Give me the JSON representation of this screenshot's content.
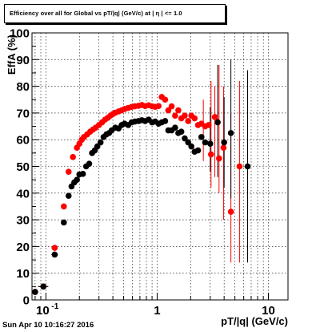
{
  "chart_data": {
    "type": "scatter",
    "title": "Efficiency over all for Global vs pT/|q| (GeV/c) at | η | <= 1.0",
    "xlabel": "pT/|q| (GeV/c)",
    "ylabel": "EffA (%)",
    "xscale": "log",
    "xlim": [
      0.075,
      15
    ],
    "ylim": [
      0,
      100
    ],
    "grid": true,
    "x_ticks": [
      {
        "v": 0.1,
        "base": "10",
        "exp": "-1"
      },
      {
        "v": 1,
        "label": "1"
      },
      {
        "v": 10,
        "label": "10"
      }
    ],
    "y_ticks": [
      "0",
      "10",
      "20",
      "30",
      "40",
      "50",
      "60",
      "70",
      "80",
      "90",
      "100"
    ],
    "series": [
      {
        "color": "#ff0000",
        "points": [
          [
            0.08,
            3,
            0.004,
            0
          ],
          [
            0.095,
            5,
            0.01,
            0
          ],
          [
            0.12,
            19.5,
            0.008,
            0
          ],
          [
            0.145,
            35,
            0,
            0
          ],
          [
            0.16,
            48,
            0,
            0
          ],
          [
            0.175,
            53.5,
            0,
            0
          ],
          [
            0.19,
            57,
            0,
            0
          ],
          [
            0.2,
            58.5,
            0,
            0
          ],
          [
            0.21,
            60,
            0,
            0
          ],
          [
            0.22,
            61,
            0,
            0
          ],
          [
            0.235,
            62,
            0,
            0
          ],
          [
            0.25,
            63,
            0,
            0
          ],
          [
            0.265,
            63.8,
            0,
            0
          ],
          [
            0.28,
            64.5,
            0,
            0
          ],
          [
            0.3,
            65.5,
            0,
            0
          ],
          [
            0.32,
            66.5,
            0,
            0
          ],
          [
            0.34,
            67.5,
            0,
            0
          ],
          [
            0.36,
            68.2,
            0,
            0
          ],
          [
            0.38,
            69,
            0,
            0
          ],
          [
            0.4,
            69.6,
            0,
            0
          ],
          [
            0.42,
            70.1,
            0,
            0
          ],
          [
            0.45,
            70.6,
            0,
            0
          ],
          [
            0.48,
            71,
            0,
            0
          ],
          [
            0.51,
            71.5,
            0,
            0
          ],
          [
            0.55,
            71.9,
            0,
            0
          ],
          [
            0.59,
            72.3,
            0,
            0
          ],
          [
            0.63,
            72.5,
            0,
            0
          ],
          [
            0.68,
            72.7,
            0,
            0
          ],
          [
            0.73,
            73,
            0,
            0
          ],
          [
            0.78,
            72.6,
            0,
            0
          ],
          [
            0.84,
            72.9,
            0,
            0
          ],
          [
            0.9,
            72.5,
            0,
            0
          ],
          [
            0.96,
            72.3,
            0,
            0
          ],
          [
            1.03,
            72.6,
            0,
            0
          ],
          [
            1.1,
            76,
            0,
            0
          ],
          [
            1.18,
            75,
            0,
            0
          ],
          [
            1.26,
            71,
            0,
            0
          ],
          [
            1.35,
            72.5,
            0,
            0
          ],
          [
            1.45,
            69,
            0,
            0
          ],
          [
            1.55,
            71,
            0,
            0
          ],
          [
            1.65,
            68,
            0,
            0
          ],
          [
            1.77,
            69,
            0,
            0
          ],
          [
            1.9,
            67,
            0,
            0
          ],
          [
            2.03,
            69,
            0,
            0
          ],
          [
            2.17,
            68,
            0,
            0
          ],
          [
            2.33,
            65.5,
            0,
            0
          ],
          [
            2.5,
            66,
            0,
            0
          ],
          [
            2.7,
            65,
            0,
            0
          ],
          [
            2.9,
            65.5,
            0,
            0
          ],
          [
            3.05,
            54.5,
            0,
            0
          ],
          [
            3.3,
            68.5,
            0,
            0
          ],
          [
            3.6,
            53,
            0,
            0
          ],
          [
            3.95,
            57,
            0,
            0
          ],
          [
            4.6,
            33,
            0,
            0
          ],
          [
            5.5,
            50,
            0,
            0
          ]
        ]
      },
      {
        "color": "#000000",
        "points": [
          [
            0.08,
            3,
            0.004,
            0
          ],
          [
            0.095,
            5,
            0.01,
            0
          ],
          [
            0.12,
            17,
            0.008,
            0
          ],
          [
            0.145,
            29,
            0,
            0
          ],
          [
            0.16,
            39,
            0,
            0
          ],
          [
            0.17,
            42.5,
            0,
            0
          ],
          [
            0.18,
            44,
            0,
            0
          ],
          [
            0.19,
            45,
            0,
            0
          ],
          [
            0.2,
            47,
            0,
            0
          ],
          [
            0.215,
            47.2,
            0,
            0
          ],
          [
            0.23,
            50,
            0,
            0
          ],
          [
            0.245,
            51,
            0,
            0
          ],
          [
            0.26,
            55,
            0,
            0
          ],
          [
            0.275,
            56,
            0,
            0
          ],
          [
            0.29,
            57.5,
            0,
            0
          ],
          [
            0.31,
            59,
            0,
            0
          ],
          [
            0.33,
            61,
            0,
            0
          ],
          [
            0.35,
            62,
            0,
            0
          ],
          [
            0.37,
            62.5,
            0,
            0
          ],
          [
            0.39,
            63.5,
            0,
            0
          ],
          [
            0.42,
            64.5,
            0,
            0
          ],
          [
            0.45,
            64.2,
            0,
            0
          ],
          [
            0.48,
            65.5,
            0,
            0
          ],
          [
            0.51,
            66,
            0,
            0
          ],
          [
            0.55,
            65.5,
            0,
            0
          ],
          [
            0.59,
            66.5,
            0,
            0
          ],
          [
            0.63,
            66.8,
            0,
            0
          ],
          [
            0.68,
            67,
            0,
            0
          ],
          [
            0.73,
            67.3,
            0,
            0
          ],
          [
            0.78,
            67,
            0,
            0
          ],
          [
            0.84,
            67.5,
            0,
            0
          ],
          [
            0.9,
            66.5,
            0,
            0
          ],
          [
            0.96,
            66.8,
            0,
            0
          ],
          [
            1.03,
            66,
            0,
            0
          ],
          [
            1.1,
            66.5,
            0,
            0
          ],
          [
            1.18,
            67,
            0,
            0
          ],
          [
            1.26,
            63.5,
            0,
            0
          ],
          [
            1.35,
            63.5,
            0,
            0
          ],
          [
            1.45,
            64.5,
            0,
            0
          ],
          [
            1.55,
            62.5,
            0,
            0
          ],
          [
            1.65,
            63,
            0,
            0
          ],
          [
            1.77,
            60.5,
            0,
            0
          ],
          [
            1.9,
            59,
            0,
            0
          ],
          [
            2.03,
            57.5,
            0,
            0
          ],
          [
            2.17,
            55.5,
            0,
            0
          ],
          [
            2.33,
            56,
            0,
            0
          ],
          [
            2.5,
            61,
            0,
            0
          ],
          [
            2.7,
            59,
            0,
            0
          ],
          [
            3.0,
            58.5,
            0,
            0
          ],
          [
            3.5,
            66.5,
            0,
            0
          ],
          [
            4.0,
            59,
            0,
            0
          ],
          [
            4.6,
            62.5,
            0,
            0
          ],
          [
            6.5,
            50,
            0,
            0
          ]
        ]
      }
    ]
  },
  "footer": {
    "timestamp": "Sun Apr 10 10:16:27 2016"
  }
}
